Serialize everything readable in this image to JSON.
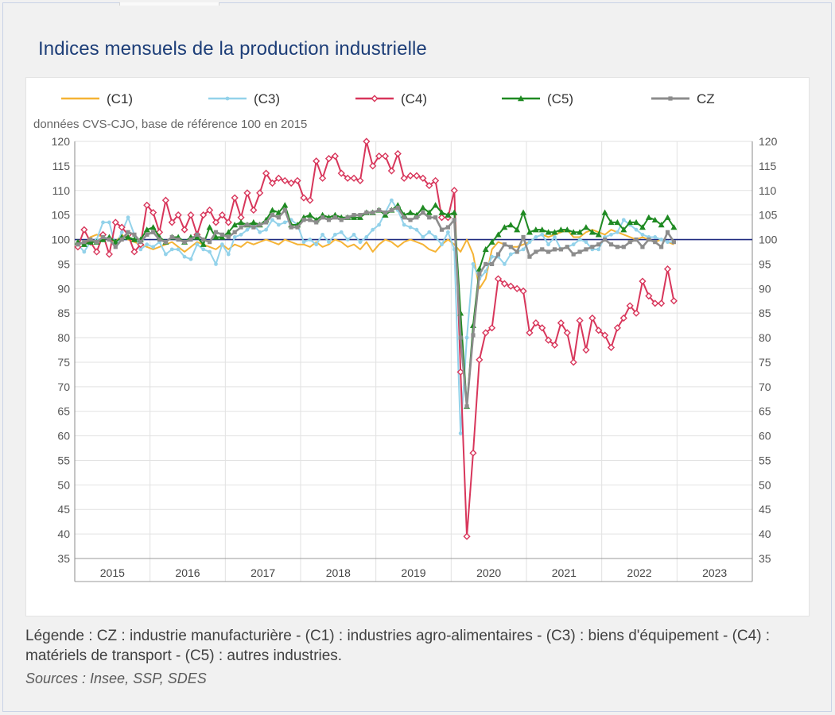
{
  "title": "Indices mensuels de la production industrielle",
  "caption": "Légende : CZ : industrie manufacturière - (C1) : industries agro-alimentaires - (C3) : biens d'équipement - (C4) : matériels de transport - (C5) : autres industries.",
  "sources": "Sources : Insee, SSP, SDES",
  "colors": {
    "C1": "#f5b335",
    "C3": "#93d2ea",
    "C4": "#d8365b",
    "C5": "#1f8a22",
    "CZ": "#8c8c8c",
    "reference_line": "#1f2a80"
  },
  "chart_data": {
    "type": "line",
    "subtitle": "données CVS-CJO, base de référence 100 en 2015",
    "x_start": "2015-01",
    "years": [
      "2015",
      "2016",
      "2017",
      "2018",
      "2019",
      "2020",
      "2021",
      "2022",
      "2023"
    ],
    "yticks": [
      35,
      40,
      45,
      50,
      55,
      60,
      65,
      70,
      75,
      80,
      85,
      90,
      95,
      100,
      105,
      110,
      115,
      120
    ],
    "ylim": [
      35,
      120
    ],
    "reference_value": 100,
    "legend_position": "top",
    "series": [
      {
        "name": "(C1)",
        "key": "C1",
        "marker": "none",
        "values": [
          99.5,
          99.0,
          100.5,
          101.0,
          100.5,
          100.0,
          99.5,
          101.0,
          100.0,
          99.5,
          99.0,
          98.5,
          98.0,
          98.5,
          99.0,
          99.5,
          98.5,
          97.5,
          98.5,
          99.5,
          99.0,
          98.5,
          98.0,
          99.0,
          98.0,
          99.0,
          98.5,
          99.5,
          99.0,
          99.5,
          100.0,
          99.5,
          99.0,
          100.0,
          99.5,
          99.0,
          99.0,
          98.5,
          99.5,
          98.5,
          99.0,
          100.0,
          99.5,
          98.5,
          99.0,
          98.0,
          99.5,
          97.5,
          99.0,
          100.0,
          99.5,
          98.5,
          99.5,
          100.0,
          99.5,
          99.0,
          98.0,
          97.5,
          99.0,
          100.0,
          99.0,
          97.5,
          100.0,
          97.0,
          90.0,
          92.0,
          98.0,
          99.5,
          99.0,
          98.5,
          98.5,
          99.0,
          99.5,
          100.5,
          101.0,
          100.5,
          101.0,
          101.5,
          102.0,
          100.5,
          100.5,
          101.5,
          102.0,
          101.5,
          101.0,
          102.0,
          101.5,
          101.0,
          100.5,
          100.0,
          100.5,
          100.0,
          99.5,
          100.0,
          99.5,
          99.0
        ]
      },
      {
        "name": "(C3)",
        "key": "C3",
        "marker": "circle",
        "values": [
          99.0,
          97.5,
          99.5,
          100.0,
          103.5,
          103.5,
          98.5,
          101.5,
          104.5,
          101.0,
          98.0,
          99.0,
          98.5,
          99.5,
          97.0,
          98.0,
          98.0,
          96.5,
          96.0,
          99.0,
          98.0,
          97.5,
          95.0,
          99.0,
          97.0,
          100.5,
          101.0,
          102.0,
          103.0,
          101.5,
          102.0,
          104.0,
          103.0,
          103.5,
          104.0,
          103.0,
          99.5,
          100.0,
          99.0,
          101.0,
          99.5,
          101.0,
          101.5,
          100.0,
          101.0,
          99.5,
          100.5,
          102.0,
          103.0,
          105.5,
          108.0,
          106.0,
          103.0,
          102.5,
          102.0,
          100.5,
          101.5,
          100.5,
          99.0,
          101.5,
          98.0,
          60.5,
          80.0,
          95.0,
          92.0,
          93.5,
          96.5,
          96.5,
          95.0,
          97.0,
          97.5,
          98.0,
          99.5,
          100.5,
          101.0,
          99.0,
          100.5,
          98.0,
          98.5,
          99.0,
          100.0,
          99.5,
          98.0,
          98.0,
          100.5,
          101.0,
          101.5,
          104.0,
          103.0,
          102.0,
          101.0,
          100.5,
          100.5,
          100.0,
          99.5,
          99.5
        ]
      },
      {
        "name": "(C4)",
        "key": "C4",
        "marker": "diamond",
        "values": [
          98.5,
          102.0,
          99.5,
          97.5,
          101.0,
          97.0,
          103.5,
          102.5,
          101.0,
          97.5,
          99.0,
          107.0,
          105.5,
          101.5,
          108.0,
          103.5,
          105.0,
          102.0,
          105.0,
          101.0,
          105.0,
          106.0,
          103.5,
          105.0,
          103.5,
          108.5,
          104.5,
          109.5,
          106.0,
          109.5,
          113.5,
          111.5,
          112.5,
          112.0,
          111.5,
          112.0,
          108.5,
          108.0,
          116.0,
          112.5,
          116.5,
          117.0,
          113.5,
          112.5,
          112.5,
          112.0,
          120.0,
          115.0,
          117.0,
          117.0,
          114.0,
          117.5,
          112.5,
          113.0,
          113.0,
          112.5,
          111.0,
          112.0,
          104.5,
          104.5,
          110.0,
          73.0,
          39.5,
          56.5,
          75.5,
          81.0,
          82.0,
          92.0,
          91.0,
          90.5,
          90.0,
          89.5,
          81.0,
          83.0,
          82.0,
          79.5,
          78.5,
          83.0,
          81.0,
          75.0,
          83.5,
          77.5,
          84.0,
          81.5,
          80.5,
          78.0,
          82.0,
          84.0,
          86.5,
          85.0,
          91.5,
          88.5,
          87.0,
          87.0,
          94.0,
          87.5
        ]
      },
      {
        "name": "(C5)",
        "key": "C5",
        "marker": "triangle",
        "values": [
          99.5,
          99.0,
          99.5,
          99.5,
          100.0,
          100.5,
          99.5,
          100.5,
          100.5,
          100.0,
          100.0,
          102.0,
          102.5,
          100.5,
          99.5,
          100.5,
          100.5,
          99.5,
          100.5,
          100.5,
          99.0,
          102.5,
          100.5,
          100.5,
          101.5,
          103.0,
          103.5,
          103.0,
          103.5,
          103.0,
          104.0,
          106.0,
          105.5,
          107.0,
          103.0,
          103.0,
          104.5,
          105.0,
          104.0,
          105.0,
          104.5,
          105.0,
          104.5,
          104.5,
          104.5,
          104.5,
          105.5,
          105.5,
          106.0,
          105.0,
          106.0,
          107.0,
          105.0,
          105.5,
          105.0,
          106.5,
          105.5,
          107.0,
          105.5,
          105.0,
          105.5,
          85.0,
          66.0,
          82.5,
          94.0,
          98.0,
          99.5,
          101.0,
          102.5,
          103.0,
          102.0,
          105.5,
          101.5,
          102.0,
          102.0,
          101.5,
          101.5,
          102.0,
          102.0,
          101.5,
          101.5,
          102.5,
          101.5,
          101.0,
          105.5,
          103.5,
          103.5,
          102.0,
          103.5,
          103.5,
          102.5,
          104.5,
          104.0,
          103.0,
          104.5,
          102.5
        ]
      },
      {
        "name": "CZ",
        "key": "CZ",
        "marker": "square",
        "values": [
          99.0,
          99.5,
          100.0,
          99.5,
          100.5,
          100.0,
          98.5,
          100.0,
          101.5,
          101.0,
          99.5,
          101.0,
          101.5,
          100.0,
          99.5,
          100.5,
          100.0,
          99.5,
          100.0,
          101.0,
          100.0,
          99.5,
          101.5,
          101.0,
          100.5,
          101.5,
          102.5,
          103.0,
          102.5,
          103.0,
          103.5,
          105.0,
          104.5,
          106.0,
          102.5,
          102.5,
          104.0,
          104.0,
          103.5,
          104.5,
          104.0,
          104.5,
          104.0,
          104.5,
          105.0,
          105.0,
          105.5,
          105.5,
          106.0,
          105.5,
          106.0,
          106.5,
          104.5,
          104.0,
          104.5,
          105.5,
          104.5,
          104.5,
          102.0,
          102.5,
          104.0,
          80.0,
          66.0,
          80.5,
          93.0,
          95.0,
          95.0,
          97.0,
          99.0,
          98.5,
          97.5,
          100.5,
          96.5,
          97.5,
          98.0,
          97.5,
          98.0,
          98.0,
          98.5,
          97.0,
          97.5,
          98.0,
          98.5,
          99.0,
          100.0,
          99.0,
          98.5,
          98.5,
          99.5,
          100.0,
          98.5,
          100.0,
          99.5,
          98.5,
          101.5,
          99.5
        ]
      }
    ]
  }
}
